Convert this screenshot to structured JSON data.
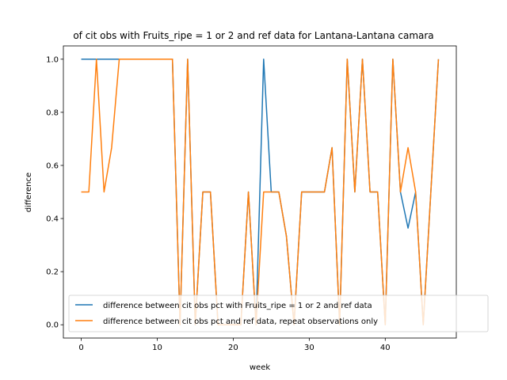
{
  "chart_data": {
    "type": "line",
    "title": "of cit obs with Fruits_ripe = 1 or 2 and ref data for Lantana-Lantana camara",
    "xlabel": "week",
    "ylabel": "difference",
    "xlim": [
      -2.35,
      49.35
    ],
    "ylim": [
      -0.05,
      1.05
    ],
    "xticks": [
      0,
      10,
      20,
      30,
      40
    ],
    "yticks": [
      0.0,
      0.2,
      0.4,
      0.6,
      0.8,
      1.0
    ],
    "xtick_labels": [
      "0",
      "10",
      "20",
      "30",
      "40"
    ],
    "ytick_labels": [
      "0.0",
      "0.2",
      "0.4",
      "0.6",
      "0.8",
      "1.0"
    ],
    "grid": false,
    "legend_position": "lower-right",
    "series": [
      {
        "name": "difference between cit obs pct with Fruits_ripe = 1 or 2 and ref data",
        "color": "#1f77b4",
        "x": [
          0,
          1,
          2,
          3,
          4,
          5,
          6,
          7,
          8,
          9,
          10,
          11,
          12,
          13,
          14,
          15,
          16,
          17,
          18,
          19,
          20,
          21,
          22,
          23,
          24,
          25,
          26,
          27,
          28,
          29,
          30,
          31,
          32,
          33,
          34,
          35,
          36,
          37,
          38,
          39,
          40,
          41,
          42,
          43,
          44,
          45,
          46,
          47
        ],
        "y": [
          1,
          1,
          1,
          1,
          1,
          1,
          1,
          1,
          1,
          1,
          1,
          1,
          1,
          0,
          1,
          0,
          0.5,
          0.5,
          0,
          0,
          0,
          0,
          0.5,
          0,
          1,
          0.5,
          0.5,
          0.333,
          0,
          0.5,
          0.5,
          0.5,
          0.5,
          0.667,
          0,
          1,
          0.5,
          1,
          0.5,
          0.5,
          0,
          1,
          0.5,
          0.364,
          0.5,
          0,
          0.5,
          1
        ]
      },
      {
        "name": "difference between cit obs pct and ref data, repeat observations only",
        "color": "#ff7f0e",
        "x": [
          0,
          1,
          2,
          3,
          4,
          5,
          6,
          7,
          8,
          9,
          10,
          11,
          12,
          13,
          14,
          15,
          16,
          17,
          18,
          19,
          20,
          21,
          22,
          23,
          24,
          25,
          26,
          27,
          28,
          29,
          30,
          31,
          32,
          33,
          34,
          35,
          36,
          37,
          38,
          39,
          40,
          41,
          42,
          43,
          44,
          45,
          46,
          47
        ],
        "y": [
          0.5,
          0.5,
          1,
          0.5,
          0.667,
          1,
          1,
          1,
          1,
          1,
          1,
          1,
          1,
          0,
          1,
          0,
          0.5,
          0.5,
          0,
          0,
          0,
          0,
          0.5,
          0,
          0.5,
          0.5,
          0.5,
          0.333,
          0,
          0.5,
          0.5,
          0.5,
          0.5,
          0.667,
          0,
          1,
          0.5,
          1,
          0.5,
          0.5,
          0,
          1,
          0.5,
          0.667,
          0.5,
          0,
          0.5,
          1
        ]
      }
    ]
  }
}
